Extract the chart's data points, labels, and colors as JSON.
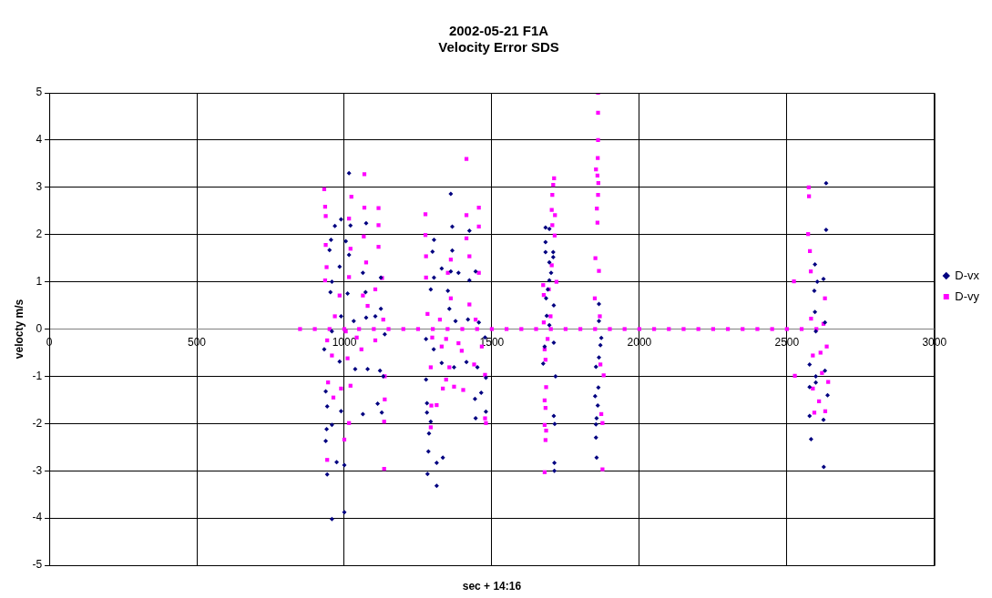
{
  "chart_data": {
    "type": "scatter",
    "title": "2002-05-21 F1A\nVelocity Error SDS",
    "xlabel": "sec + 14:16",
    "ylabel": "velocty m/s",
    "xlim": [
      0,
      3000
    ],
    "xticks": [
      0,
      500,
      1000,
      1500,
      2000,
      2500,
      3000
    ],
    "ylim": [
      -5,
      5
    ],
    "yticks": [
      -5,
      -4,
      -3,
      -2,
      -1,
      0,
      1,
      2,
      3,
      4,
      5
    ],
    "grid": true,
    "legend": "right",
    "series": [
      {
        "name": "D-vx",
        "color": "#000080",
        "marker": "diamond",
        "x": [
          1016,
          989,
          968,
          1021,
          1074,
          955,
          950,
          1005,
          1016,
          984,
          958,
          1063,
          1124,
          953,
          1011,
          1072,
          989,
          1032,
          1074,
          1105,
          1124,
          958,
          1137,
          932,
          984,
          1037,
          1079,
          1121,
          1132,
          937,
          942,
          989,
          958,
          940,
          937,
          1063,
          1113,
          1127,
          942,
          974,
          1000,
          1000,
          958,
          1361,
          1366,
          1304,
          1299,
          1366,
          1424,
          1330,
          1304,
          1361,
          1387,
          1445,
          1293,
          1351,
          1424,
          1356,
          1377,
          1419,
          1456,
          1277,
          1477,
          1303,
          1330,
          1372,
          1414,
          1451,
          1277,
          1480,
          1443,
          1464,
          1280,
          1280,
          1293,
          1445,
          1480,
          1287,
          1285,
          1334,
          1313,
          1282,
          1313,
          1682,
          1695,
          1682,
          1682,
          1708,
          1708,
          1695,
          1701,
          1695,
          1690,
          1684,
          1710,
          1686,
          1695,
          1679,
          1710,
          1674,
          1716,
          1710,
          1713,
          1712,
          1712,
          1863,
          1863,
          1871,
          1868,
          1863,
          1853,
          1861,
          1850,
          1859,
          1855,
          1853,
          1853,
          1855,
          2633,
          2633,
          2595,
          2603,
          2624,
          2593,
          2595,
          2629,
          2598,
          2577,
          2598,
          2629,
          2577,
          2638,
          2577,
          2624,
          2582,
          2625,
          2598
        ],
        "values": [
          3.3,
          2.32,
          2.18,
          2.19,
          2.24,
          1.89,
          1.67,
          1.86,
          1.57,
          1.32,
          1.0,
          1.19,
          1.09,
          0.78,
          0.75,
          0.78,
          0.27,
          0.17,
          0.24,
          0.27,
          0.43,
          -0.05,
          -0.11,
          -0.43,
          -0.69,
          -0.85,
          -0.85,
          -0.88,
          -1.0,
          -1.32,
          -1.64,
          -1.74,
          -2.03,
          -2.12,
          -2.37,
          -1.8,
          -1.58,
          -1.77,
          -3.08,
          -2.82,
          -2.88,
          -3.88,
          -4.02,
          2.86,
          2.17,
          1.89,
          1.64,
          1.66,
          2.08,
          1.28,
          1.09,
          1.22,
          1.19,
          1.22,
          0.84,
          0.81,
          1.03,
          0.43,
          0.17,
          0.2,
          0.14,
          -0.21,
          -0.18,
          -0.43,
          -0.72,
          -0.81,
          -0.7,
          -0.81,
          -1.07,
          -1.03,
          -1.48,
          -1.35,
          -1.57,
          -1.77,
          -1.96,
          -1.89,
          -1.75,
          -2.21,
          -2.59,
          -2.72,
          -2.83,
          -3.07,
          -3.32,
          2.15,
          2.12,
          1.84,
          1.63,
          1.63,
          1.52,
          1.41,
          1.19,
          1.03,
          0.84,
          0.65,
          0.5,
          0.28,
          0.08,
          -0.37,
          -0.29,
          -0.73,
          -1.0,
          -1.84,
          -2.01,
          -2.83,
          -3.0,
          0.53,
          0.17,
          -0.19,
          -0.34,
          -0.6,
          -0.8,
          -1.24,
          -1.42,
          -1.62,
          -1.89,
          -2.02,
          -2.3,
          -2.72,
          3.09,
          2.1,
          1.37,
          1.0,
          1.06,
          0.81,
          0.36,
          0.14,
          -0.05,
          -0.75,
          -1.0,
          -0.88,
          -1.23,
          -1.4,
          -1.84,
          -1.92,
          -2.33,
          -2.92,
          -1.13
        ]
      },
      {
        "name": "D-vy",
        "color": "#ff00ff",
        "marker": "square",
        "x": [
          850,
          900,
          950,
          1000,
          1050,
          1100,
          1150,
          1200,
          1250,
          1300,
          1350,
          1400,
          1450,
          1500,
          1550,
          1600,
          1650,
          1700,
          1750,
          1800,
          1850,
          1900,
          1950,
          2000,
          2050,
          2100,
          2150,
          2200,
          2250,
          2300,
          2350,
          2400,
          2450,
          2500,
          2550,
          2600,
          932,
          1068,
          1024,
          935,
          1068,
          1116,
          937,
          1016,
          1116,
          937,
          1066,
          1021,
          1116,
          940,
          1074,
          935,
          1016,
          1128,
          984,
          1063,
          1105,
          1079,
          968,
          1132,
          1005,
          1042,
          942,
          1105,
          1058,
          958,
          1011,
          1137,
          945,
          1021,
          989,
          963,
          1137,
          1016,
          1135,
          1000,
          942,
          1135,
          1414,
          1275,
          1456,
          1414,
          1456,
          1275,
          1414,
          1277,
          1361,
          1424,
          1277,
          1351,
          1456,
          1361,
          1424,
          1282,
          1324,
          1445,
          1298,
          1345,
          1387,
          1398,
          1330,
          1466,
          1293,
          1356,
          1440,
          1477,
          1345,
          1334,
          1372,
          1403,
          1295,
          1313,
          1477,
          1480,
          1293,
          1711,
          1708,
          1705,
          1703,
          1714,
          1705,
          1713,
          1703,
          1719,
          1674,
          1693,
          1676,
          1699,
          1676,
          1689,
          1679,
          1682,
          1684,
          1679,
          1682,
          1679,
          1684,
          1682,
          1679,
          1860,
          1860,
          1860,
          1859,
          1853,
          1858,
          1861,
          1860,
          1856,
          1858,
          1851,
          1863,
          1849,
          1866,
          1868,
          1879,
          1871,
          1875,
          1875,
          2574,
          2575,
          2572,
          2578,
          2581,
          2524,
          2629,
          2582,
          2624,
          2635,
          2588,
          2614,
          2527,
          2619,
          2640,
          2588,
          2609,
          2593,
          2630
        ],
        "values": [
          0,
          0,
          0,
          0,
          0,
          0,
          0,
          0,
          0,
          0,
          0,
          0,
          0,
          0,
          0,
          0,
          0,
          0,
          0,
          0,
          0,
          0,
          0,
          0,
          0,
          0,
          0,
          0,
          0,
          0,
          0,
          0,
          0,
          0,
          0,
          0,
          2.96,
          3.28,
          2.8,
          2.59,
          2.57,
          2.56,
          2.39,
          2.34,
          2.2,
          1.78,
          1.96,
          1.7,
          1.74,
          1.31,
          1.41,
          1.03,
          1.1,
          1.08,
          0.71,
          0.71,
          0.84,
          0.49,
          0.27,
          0.2,
          -0.05,
          -0.18,
          -0.24,
          -0.24,
          -0.43,
          -0.56,
          -0.62,
          -1.0,
          -1.13,
          -1.2,
          -1.26,
          -1.45,
          -1.49,
          -1.99,
          -1.96,
          -2.34,
          -2.77,
          -2.96,
          3.6,
          2.43,
          2.57,
          2.41,
          2.17,
          1.99,
          1.92,
          1.54,
          1.47,
          1.54,
          1.09,
          1.19,
          1.19,
          0.65,
          0.52,
          0.32,
          0.2,
          0.2,
          -0.18,
          -0.21,
          -0.3,
          -0.46,
          -0.37,
          -0.37,
          -0.81,
          -0.81,
          -0.75,
          -0.97,
          -1.07,
          -1.26,
          -1.22,
          -1.29,
          -1.62,
          -1.61,
          -1.89,
          -1.99,
          -2.08,
          3.19,
          3.05,
          2.84,
          2.52,
          2.41,
          2.2,
          1.98,
          1.35,
          1.0,
          0.93,
          0.84,
          0.72,
          0.27,
          0.14,
          -0.21,
          -0.43,
          -0.65,
          -1.23,
          -1.51,
          -1.67,
          -2.03,
          -2.15,
          -2.35,
          -3.03,
          5.0,
          4.58,
          4.0,
          3.62,
          3.38,
          3.25,
          3.09,
          2.84,
          2.55,
          2.25,
          1.5,
          1.23,
          0.65,
          0.27,
          -0.75,
          -0.98,
          -1.8,
          -1.99,
          -2.97,
          3.0,
          2.81,
          2.01,
          1.65,
          1.22,
          1.01,
          0.65,
          0.22,
          0.11,
          -0.37,
          -0.56,
          -0.5,
          -0.99,
          -0.93,
          -1.12,
          -1.26,
          -1.53,
          -1.77,
          -1.74
        ]
      }
    ]
  }
}
